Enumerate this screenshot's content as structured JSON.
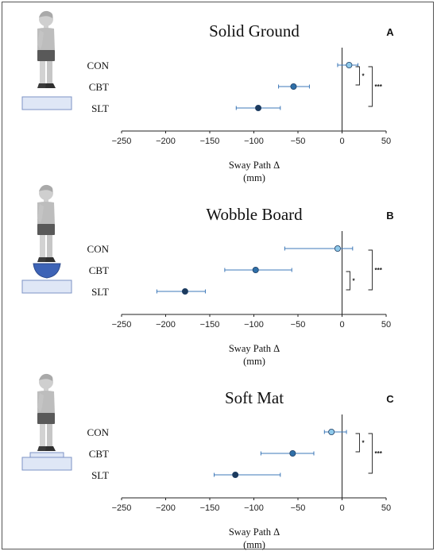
{
  "chart_data": [
    {
      "type": "scatter",
      "title": "Solid Ground",
      "panel_label": "A",
      "categories": [
        "CON",
        "CBT",
        "SLT"
      ],
      "means": [
        8,
        -55,
        -95
      ],
      "ci_low": [
        -5,
        -72,
        -120
      ],
      "ci_high": [
        18,
        -37,
        -70
      ],
      "xlim": [
        -250,
        50
      ],
      "xticks": [
        -250,
        -200,
        -150,
        -100,
        -50,
        0,
        50
      ],
      "xlabel": "Sway Path Δ",
      "xunit": "(mm)",
      "significance": [
        {
          "from": "CON",
          "to": "CBT",
          "label": "*"
        },
        {
          "from": "CON",
          "to": "SLT",
          "label": "***"
        }
      ],
      "apparatus": "solid-ground"
    },
    {
      "type": "scatter",
      "title": "Wobble Board",
      "panel_label": "B",
      "categories": [
        "CON",
        "CBT",
        "SLT"
      ],
      "means": [
        -5,
        -98,
        -178
      ],
      "ci_low": [
        -65,
        -133,
        -210
      ],
      "ci_high": [
        12,
        -57,
        -155
      ],
      "xlim": [
        -250,
        50
      ],
      "xticks": [
        -250,
        -200,
        -150,
        -100,
        -50,
        0,
        50
      ],
      "xlabel": "Sway Path Δ",
      "xunit": "(mm)",
      "significance": [
        {
          "from": "CBT",
          "to": "SLT",
          "label": "*"
        },
        {
          "from": "CON",
          "to": "SLT",
          "label": "***"
        }
      ],
      "apparatus": "wobble-board"
    },
    {
      "type": "scatter",
      "title": "Soft Mat",
      "panel_label": "C",
      "categories": [
        "CON",
        "CBT",
        "SLT"
      ],
      "means": [
        -12,
        -56,
        -121
      ],
      "ci_low": [
        -20,
        -92,
        -145
      ],
      "ci_high": [
        5,
        -32,
        -70
      ],
      "xlim": [
        -250,
        50
      ],
      "xticks": [
        -250,
        -200,
        -150,
        -100,
        -50,
        0,
        50
      ],
      "xlabel": "Sway Path Δ",
      "xunit": "(mm)",
      "significance": [
        {
          "from": "CON",
          "to": "CBT",
          "label": "*"
        },
        {
          "from": "CON",
          "to": "SLT",
          "label": "***"
        }
      ],
      "apparatus": "soft-mat"
    }
  ],
  "colors": {
    "CON": "#8ec9ea",
    "CBT": "#2f6fa8",
    "SLT": "#1b3a5e",
    "errorbar": "#3d78b8",
    "apparatus_fill": "#dfe7f6",
    "apparatus_stroke": "#7d93c5",
    "wobble_fill": "#3d63b6"
  },
  "icons": {
    "figure": "standing-person-icon"
  }
}
